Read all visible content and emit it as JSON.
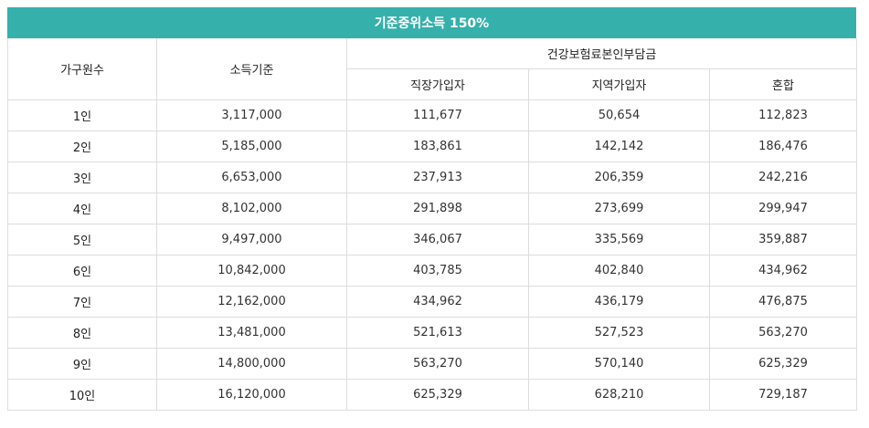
{
  "title": "기준중위소득 150%",
  "headers": {
    "household": "가구원수",
    "income": "소득기준",
    "insurance_group": "건강보험료본인부담금",
    "workplace": "직장가입자",
    "regional": "지역가입자",
    "mixed": "혼합"
  },
  "rows": [
    {
      "household": "1인",
      "income": "3,117,000",
      "workplace": "111,677",
      "regional": "50,654",
      "mixed": "112,823"
    },
    {
      "household": "2인",
      "income": "5,185,000",
      "workplace": "183,861",
      "regional": "142,142",
      "mixed": "186,476"
    },
    {
      "household": "3인",
      "income": "6,653,000",
      "workplace": "237,913",
      "regional": "206,359",
      "mixed": "242,216"
    },
    {
      "household": "4인",
      "income": "8,102,000",
      "workplace": "291,898",
      "regional": "273,699",
      "mixed": "299,947"
    },
    {
      "household": "5인",
      "income": "9,497,000",
      "workplace": "346,067",
      "regional": "335,569",
      "mixed": "359,887"
    },
    {
      "household": "6인",
      "income": "10,842,000",
      "workplace": "403,785",
      "regional": "402,840",
      "mixed": "434,962"
    },
    {
      "household": "7인",
      "income": "12,162,000",
      "workplace": "434,962",
      "regional": "436,179",
      "mixed": "476,875"
    },
    {
      "household": "8인",
      "income": "13,481,000",
      "workplace": "521,613",
      "regional": "527,523",
      "mixed": "563,270"
    },
    {
      "household": "9인",
      "income": "14,800,000",
      "workplace": "563,270",
      "regional": "570,140",
      "mixed": "625,329"
    },
    {
      "household": "10인",
      "income": "16,120,000",
      "workplace": "625,329",
      "regional": "628,210",
      "mixed": "729,187"
    }
  ],
  "colors": {
    "title_bg": "#36b0ab",
    "title_text": "#ffffff",
    "border": "#dddddd"
  }
}
